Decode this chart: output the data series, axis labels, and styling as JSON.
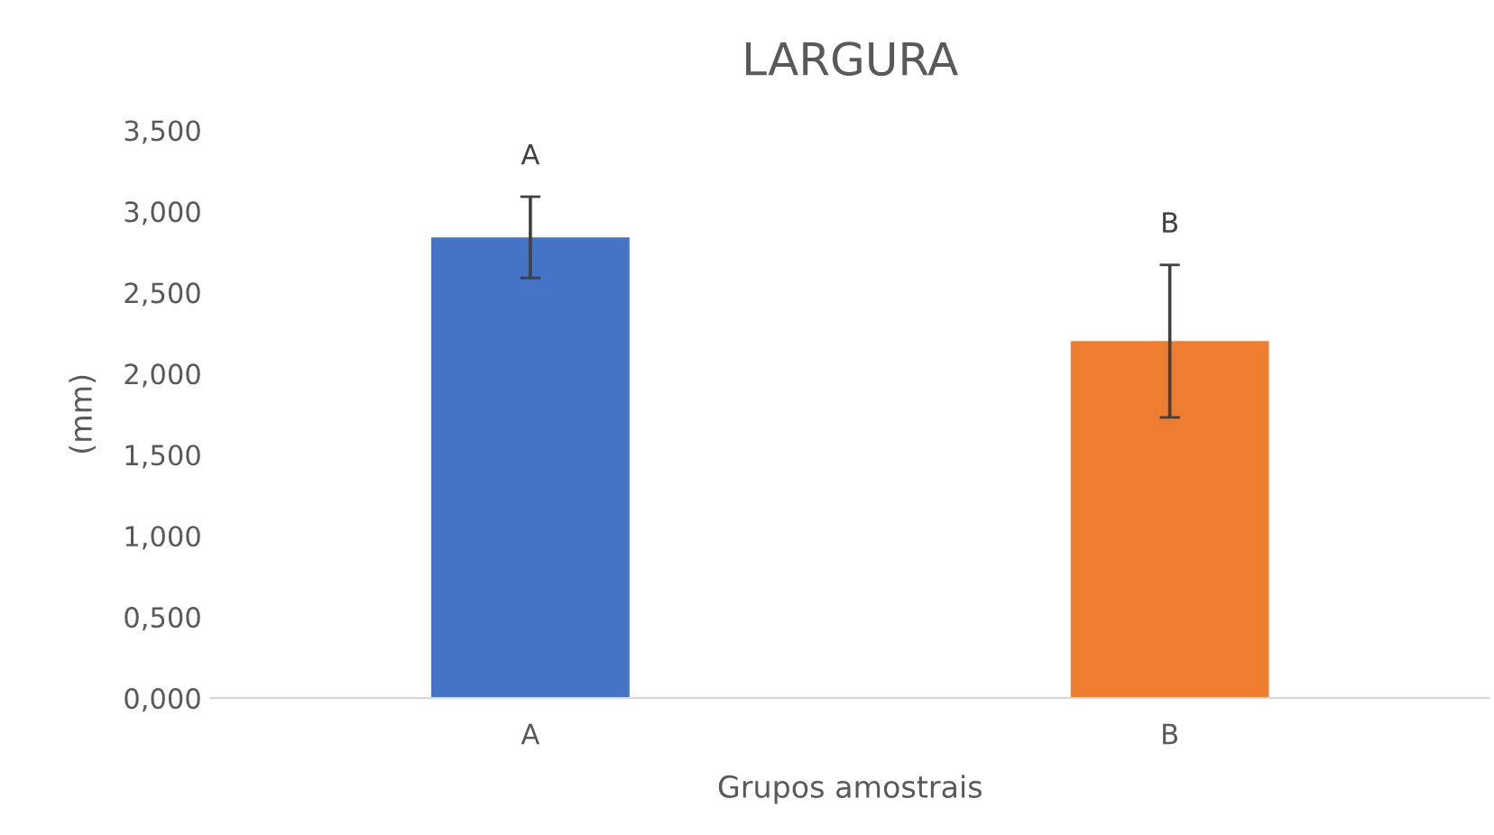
{
  "chart_data": {
    "type": "bar",
    "title": "LARGURA",
    "xlabel": "Grupos amostrais",
    "ylabel": "(mm)",
    "categories": [
      "A",
      "B"
    ],
    "values": [
      2.84,
      2.2
    ],
    "colors": [
      "#4472c4",
      "#ed7d31"
    ],
    "errors": [
      0.25,
      0.47
    ],
    "ylim": [
      0,
      3.5
    ],
    "yticks": [
      {
        "value": 0,
        "label": "0,000"
      },
      {
        "value": 0.5,
        "label": "0,500"
      },
      {
        "value": 1,
        "label": "1,000"
      },
      {
        "value": 1.5,
        "label": "1,500"
      },
      {
        "value": 2,
        "label": "2,000"
      },
      {
        "value": 2.5,
        "label": "2,500"
      },
      {
        "value": 3,
        "label": "3,000"
      },
      {
        "value": 3.5,
        "label": "3,500"
      }
    ],
    "annotations": [
      "A",
      "B"
    ],
    "grid": false,
    "legend": false
  }
}
